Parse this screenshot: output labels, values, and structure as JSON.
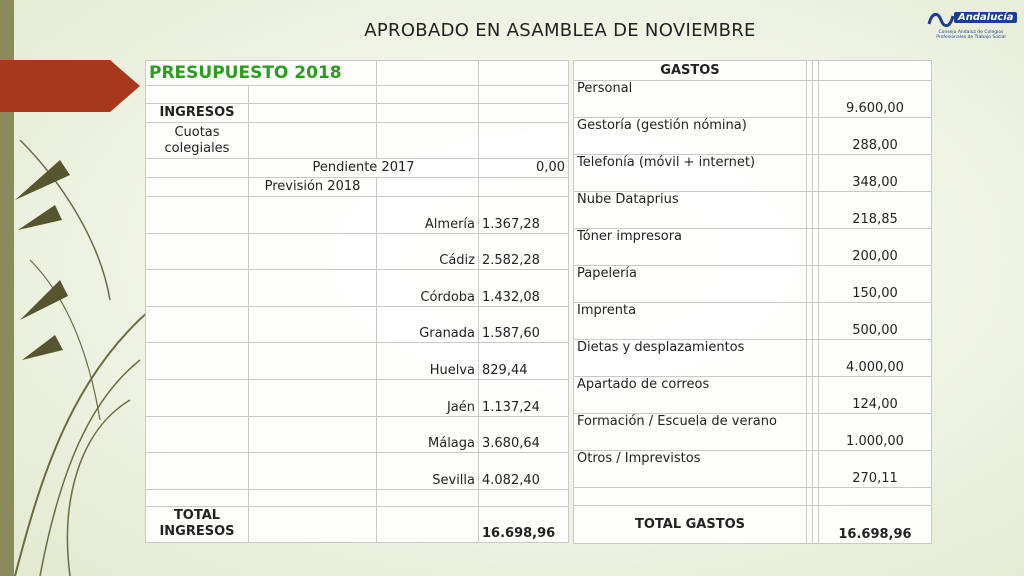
{
  "header": {
    "title": "APROBADO EN ASAMBLEA DE NOVIEMBRE"
  },
  "logo": {
    "name": "Andalucía",
    "subtitle": "Consejo Andaluz de Colegios Profesionales de Trabajo Social"
  },
  "income_table": {
    "title": "PRESUPUESTO 2018",
    "section": "INGRESOS",
    "fees": "Cuotas colegiales",
    "pending": {
      "label": "Pendiente 2017",
      "value": "0,00"
    },
    "forecast": "Previsión 2018",
    "provinces": [
      {
        "name": "Almería",
        "value": "1.367,28"
      },
      {
        "name": "Cádiz",
        "value": "2.582,28"
      },
      {
        "name": "Córdoba",
        "value": "1.432,08"
      },
      {
        "name": "Granada",
        "value": "1.587,60"
      },
      {
        "name": "Huelva",
        "value": "829,44"
      },
      {
        "name": "Jaén",
        "value": "1.137,24"
      },
      {
        "name": "Málaga",
        "value": "3.680,64"
      },
      {
        "name": "Sevilla",
        "value": "4.082,40"
      }
    ],
    "total": {
      "label": "TOTAL INGRESOS",
      "value": "16.698,96"
    }
  },
  "expense_table": {
    "header": "GASTOS",
    "items": [
      {
        "label": "Personal",
        "value": "9.600,00"
      },
      {
        "label": "Gestoría (gestión nómina)",
        "value": "288,00"
      },
      {
        "label": "Telefonía (móvil + internet)",
        "value": "348,00"
      },
      {
        "label": "Nube Dataprius",
        "value": "218,85"
      },
      {
        "label": "Tóner impresora",
        "value": "200,00"
      },
      {
        "label": "Papelería",
        "value": "150,00"
      },
      {
        "label": "Imprenta",
        "value": "500,00"
      },
      {
        "label": "Dietas y desplazamientos",
        "value": "4.000,00"
      },
      {
        "label": "Apartado de correos",
        "value": "124,00"
      },
      {
        "label": "Formación / Escuela de verano",
        "value": "1.000,00"
      },
      {
        "label": "Otros / Imprevistos",
        "value": "270,11"
      }
    ],
    "total": {
      "label": "TOTAL GASTOS",
      "value": "16.698,96"
    }
  }
}
